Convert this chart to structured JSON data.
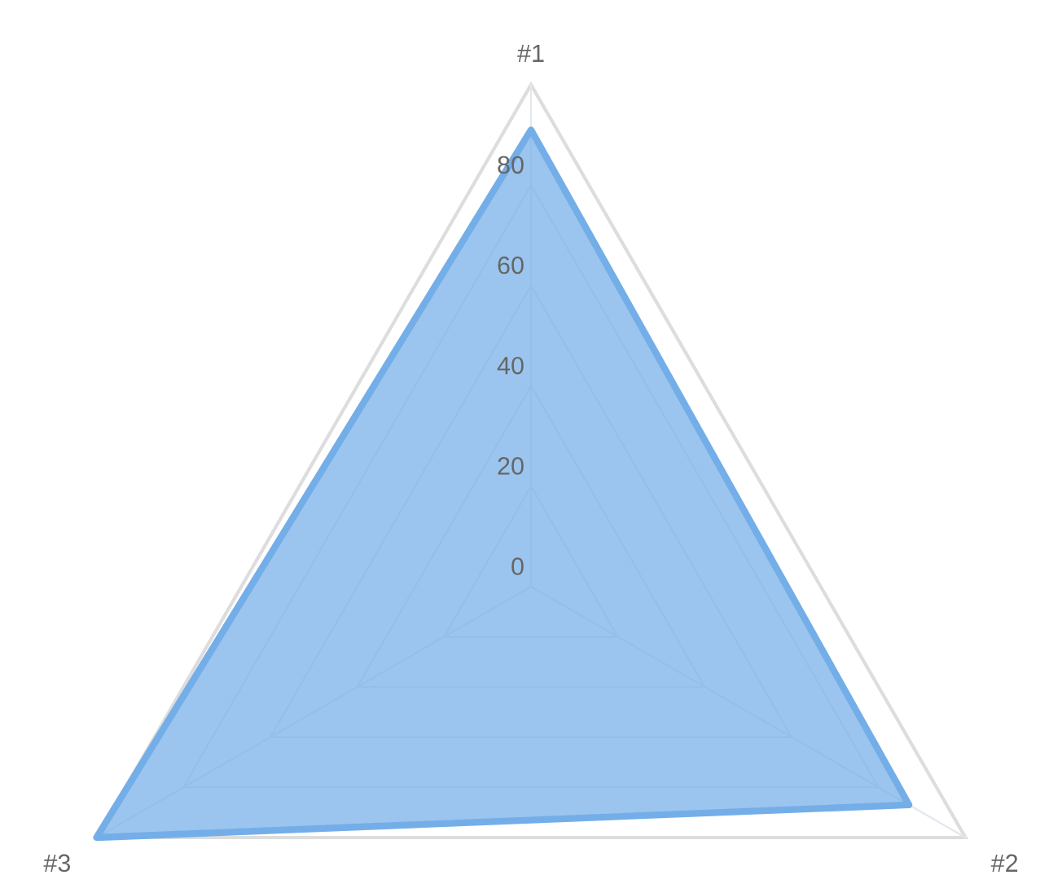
{
  "chart_data": {
    "type": "radar",
    "categories": [
      "#1",
      "#2",
      "#3"
    ],
    "series": [
      {
        "color": "#74aee8",
        "values": [
          91,
          87,
          100
        ]
      }
    ],
    "ylim": [
      0,
      100
    ],
    "yticks": [
      0,
      20,
      40,
      60,
      80
    ],
    "grid": true
  }
}
